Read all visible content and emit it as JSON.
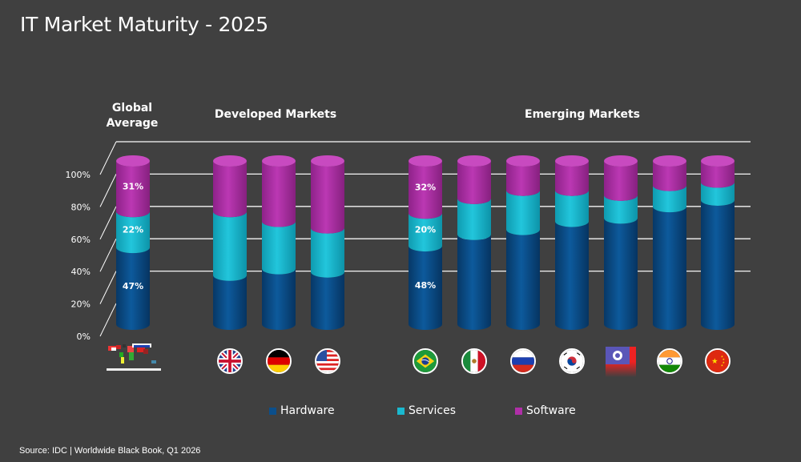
{
  "title": "IT Market Maturity - 2025",
  "groups": {
    "global": "Global Average",
    "developed": "Developed Markets",
    "emerging": "Emerging Markets"
  },
  "source": "Source: IDC | Worldwide Black Book, Q1 2026",
  "colors": {
    "hardware": "#0b4f8c",
    "services": "#1ab8cf",
    "software": "#b02fa8",
    "background": "#404040"
  },
  "legend": [
    {
      "name": "Hardware",
      "color": "#0b4f8c"
    },
    {
      "name": "Services",
      "color": "#1ab8cf"
    },
    {
      "name": "Software",
      "color": "#b02fa8"
    }
  ],
  "chart_data": {
    "type": "bar",
    "stacked": true,
    "style": "3d-cylinder",
    "title": "IT Market Maturity - 2025",
    "xlabel": "",
    "ylabel": "",
    "ylim": [
      0,
      100
    ],
    "yticks": [
      "0%",
      "20%",
      "40%",
      "60%",
      "80%",
      "100%"
    ],
    "grid": true,
    "legend_position": "bottom",
    "categories": [
      "Global Average",
      "United Kingdom",
      "Germany",
      "United States",
      "Brazil",
      "Mexico",
      "Russia",
      "South Korea",
      "Taiwan",
      "India",
      "China"
    ],
    "category_groups": [
      "Global Average",
      "Developed Markets",
      "Developed Markets",
      "Developed Markets",
      "Emerging Markets",
      "Emerging Markets",
      "Emerging Markets",
      "Emerging Markets",
      "Emerging Markets",
      "Emerging Markets",
      "Emerging Markets"
    ],
    "flags": [
      "world-map",
      "uk-flag",
      "germany-flag",
      "usa-flag",
      "brazil-flag",
      "mexico-flag",
      "russia-flag",
      "south-korea-flag",
      "taiwan-flag",
      "india-flag",
      "china-flag"
    ],
    "series": [
      {
        "name": "Hardware",
        "values": [
          47,
          30,
          34,
          32,
          48,
          55,
          58,
          63,
          65,
          72,
          76
        ]
      },
      {
        "name": "Services",
        "values": [
          22,
          39,
          29,
          27,
          20,
          22,
          24,
          19,
          14,
          13,
          11
        ]
      },
      {
        "name": "Software",
        "values": [
          31,
          31,
          37,
          41,
          32,
          23,
          18,
          18,
          21,
          15,
          13
        ]
      }
    ],
    "data_labels": [
      {
        "category": "Global Average",
        "Hardware": "47%",
        "Services": "22%",
        "Software": "31%"
      },
      {
        "category": "Brazil",
        "Hardware": "48%",
        "Services": "20%",
        "Software": "32%"
      }
    ]
  }
}
